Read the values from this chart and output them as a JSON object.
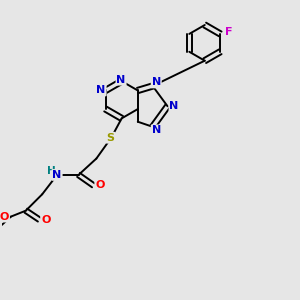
{
  "bg_color": "#e6e6e6",
  "atom_colors": {
    "N": "#0000cc",
    "O": "#ff0000",
    "S": "#999900",
    "F": "#cc00cc",
    "C": "#000000",
    "H": "#008080"
  },
  "fig_size": [
    3.0,
    3.0
  ],
  "dpi": 100
}
